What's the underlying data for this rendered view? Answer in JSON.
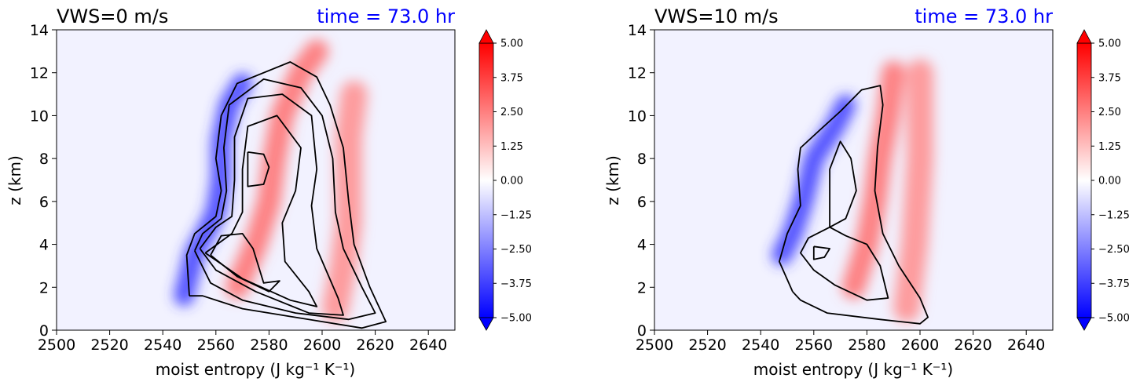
{
  "chart_data": [
    {
      "type": "heatmap",
      "title": "VWS=0 m/s",
      "time_label": "time = 73.0 hr",
      "xlabel": "moist entropy (J kg⁻¹ K⁻¹)",
      "ylabel": "z (km)",
      "xlim": [
        2500,
        2650
      ],
      "ylim": [
        0,
        14
      ],
      "x_ticks": [
        "2500",
        "2520",
        "2540",
        "2560",
        "2580",
        "2600",
        "2620",
        "2640"
      ],
      "y_ticks": [
        "0",
        "2",
        "4",
        "6",
        "8",
        "10",
        "12",
        "14"
      ],
      "colorbar": {
        "range": [
          -5,
          5
        ],
        "colormap": "bwr",
        "tick_labels": [
          "5.00",
          "3.75",
          "2.50",
          "1.25",
          "0.00",
          "−1.25",
          "−2.50",
          "−3.75",
          "−5.00"
        ]
      },
      "features": {
        "negative_core": [
          [
            2548,
            1.6
          ],
          [
            2552,
            3.6
          ],
          [
            2556,
            4.5
          ],
          [
            2560,
            5.5
          ],
          [
            2562,
            7
          ],
          [
            2562,
            8.8
          ],
          [
            2565,
            10.5
          ],
          [
            2570,
            11.5
          ]
        ],
        "positive_band_1": [
          [
            2568,
            2
          ],
          [
            2575,
            4
          ],
          [
            2580,
            6
          ],
          [
            2582,
            8
          ],
          [
            2585,
            10
          ],
          [
            2592,
            12
          ],
          [
            2598,
            13
          ]
        ],
        "positive_band_2": [
          [
            2605,
            1
          ],
          [
            2608,
            3
          ],
          [
            2610,
            5
          ],
          [
            2610,
            7
          ],
          [
            2610,
            9
          ],
          [
            2612,
            11
          ]
        ]
      },
      "contours": [
        [
          [
            2550,
            1.6
          ],
          [
            2549,
            3.5
          ],
          [
            2552,
            4.5
          ],
          [
            2560,
            5.3
          ],
          [
            2562,
            6.5
          ],
          [
            2560,
            8
          ],
          [
            2562,
            10
          ],
          [
            2568,
            11.5
          ],
          [
            2588,
            12.5
          ],
          [
            2598,
            11.8
          ],
          [
            2603,
            10.5
          ],
          [
            2608,
            8.5
          ],
          [
            2610,
            6
          ],
          [
            2612,
            4
          ],
          [
            2618,
            2
          ],
          [
            2624,
            0.4
          ],
          [
            2615,
            0.1
          ],
          [
            2590,
            0.6
          ],
          [
            2570,
            1
          ],
          [
            2555,
            1.6
          ],
          [
            2550,
            1.6
          ]
        ],
        [
          [
            2552,
            3.7
          ],
          [
            2555,
            4.5
          ],
          [
            2562,
            5.2
          ],
          [
            2564,
            6.5
          ],
          [
            2563,
            8.5
          ],
          [
            2565,
            10.5
          ],
          [
            2578,
            11.7
          ],
          [
            2592,
            11.3
          ],
          [
            2600,
            10
          ],
          [
            2604,
            8
          ],
          [
            2605,
            5.5
          ],
          [
            2608,
            3.8
          ],
          [
            2615,
            2
          ],
          [
            2620,
            0.8
          ],
          [
            2610,
            0.5
          ],
          [
            2590,
            0.8
          ],
          [
            2570,
            1.4
          ],
          [
            2558,
            2.2
          ],
          [
            2552,
            3.7
          ]
        ],
        [
          [
            2554,
            3.8
          ],
          [
            2560,
            4.8
          ],
          [
            2566,
            5.3
          ],
          [
            2567,
            7
          ],
          [
            2567,
            9
          ],
          [
            2572,
            10.8
          ],
          [
            2585,
            11
          ],
          [
            2596,
            10
          ],
          [
            2598,
            7.5
          ],
          [
            2596,
            5.8
          ],
          [
            2598,
            3.8
          ],
          [
            2606,
            1.5
          ],
          [
            2608,
            0.7
          ],
          [
            2595,
            0.8
          ],
          [
            2575,
            1.8
          ],
          [
            2560,
            2.8
          ],
          [
            2554,
            3.8
          ]
        ],
        [
          [
            2556,
            3.6
          ],
          [
            2566,
            4.5
          ],
          [
            2570,
            5.5
          ],
          [
            2570,
            7.5
          ],
          [
            2572,
            9.5
          ],
          [
            2583,
            10
          ],
          [
            2592,
            8.5
          ],
          [
            2590,
            6.5
          ],
          [
            2585,
            5
          ],
          [
            2586,
            3.2
          ],
          [
            2595,
            1.8
          ],
          [
            2598,
            1.1
          ],
          [
            2588,
            1.4
          ],
          [
            2570,
            2.4
          ],
          [
            2556,
            3.6
          ]
        ],
        [
          [
            2558,
            3.5
          ],
          [
            2562,
            4.4
          ],
          [
            2570,
            4.5
          ],
          [
            2574,
            3.8
          ],
          [
            2578,
            2.2
          ],
          [
            2584,
            2.3
          ],
          [
            2580,
            1.8
          ],
          [
            2568,
            2.5
          ],
          [
            2558,
            3.5
          ]
        ],
        [
          [
            2572,
            8.3
          ],
          [
            2578,
            8.2
          ],
          [
            2580,
            7.6
          ],
          [
            2578,
            6.8
          ],
          [
            2572,
            6.7
          ],
          [
            2572,
            7.5
          ],
          [
            2572,
            8.3
          ]
        ]
      ]
    },
    {
      "type": "heatmap",
      "title": "VWS=10 m/s",
      "time_label": "time = 73.0 hr",
      "xlabel": "moist entropy (J kg⁻¹ K⁻¹)",
      "ylabel": "z (km)",
      "xlim": [
        2500,
        2650
      ],
      "ylim": [
        0,
        14
      ],
      "x_ticks": [
        "2500",
        "2520",
        "2540",
        "2560",
        "2580",
        "2600",
        "2620",
        "2640"
      ],
      "y_ticks": [
        "0",
        "2",
        "4",
        "6",
        "8",
        "10",
        "12",
        "14"
      ],
      "colorbar": {
        "range": [
          -5,
          5
        ],
        "colormap": "bwr",
        "tick_labels": [
          "5.00",
          "3.75",
          "2.50",
          "1.25",
          "0.00",
          "−1.25",
          "−2.50",
          "−3.75",
          "−5.00"
        ]
      },
      "features": {
        "negative_core": [
          [
            2548,
            3.5
          ],
          [
            2552,
            4.5
          ],
          [
            2556,
            6
          ],
          [
            2560,
            8
          ],
          [
            2568,
            9.5
          ],
          [
            2572,
            10.5
          ]
        ],
        "positive_band_1": [
          [
            2575,
            2
          ],
          [
            2580,
            4
          ],
          [
            2583,
            6
          ],
          [
            2585,
            8
          ],
          [
            2588,
            10
          ],
          [
            2590,
            12
          ]
        ],
        "positive_band_2": [
          [
            2595,
            1
          ],
          [
            2598,
            4
          ],
          [
            2600,
            8
          ],
          [
            2600,
            12
          ]
        ]
      },
      "contours": [
        [
          [
            2552,
            1.8
          ],
          [
            2547,
            3.2
          ],
          [
            2550,
            4.5
          ],
          [
            2555,
            5.8
          ],
          [
            2554,
            7.5
          ],
          [
            2555,
            8.5
          ],
          [
            2562,
            9.3
          ],
          [
            2570,
            10.2
          ],
          [
            2578,
            11.2
          ],
          [
            2585,
            11.4
          ],
          [
            2586,
            10.5
          ],
          [
            2584,
            8.5
          ],
          [
            2583,
            6.5
          ],
          [
            2586,
            4.5
          ],
          [
            2592,
            3
          ],
          [
            2600,
            1.5
          ],
          [
            2603,
            0.6
          ],
          [
            2600,
            0.3
          ],
          [
            2585,
            0.5
          ],
          [
            2565,
            0.8
          ],
          [
            2555,
            1.4
          ],
          [
            2552,
            1.8
          ]
        ],
        [
          [
            2560,
            2.8
          ],
          [
            2555,
            3.6
          ],
          [
            2558,
            4.3
          ],
          [
            2566,
            4.8
          ],
          [
            2572,
            4.4
          ],
          [
            2580,
            4
          ],
          [
            2585,
            3
          ],
          [
            2588,
            1.5
          ],
          [
            2580,
            1.4
          ],
          [
            2568,
            2.1
          ],
          [
            2560,
            2.8
          ]
        ],
        [
          [
            2566,
            4.8
          ],
          [
            2566,
            6
          ],
          [
            2566,
            7.5
          ],
          [
            2570,
            8.8
          ],
          [
            2574,
            8
          ],
          [
            2576,
            6.5
          ],
          [
            2572,
            5.2
          ],
          [
            2566,
            4.8
          ]
        ],
        [
          [
            2560,
            3.9
          ],
          [
            2560,
            3.3
          ],
          [
            2564,
            3.4
          ],
          [
            2566,
            3.8
          ],
          [
            2560,
            3.9
          ]
        ]
      ]
    }
  ]
}
